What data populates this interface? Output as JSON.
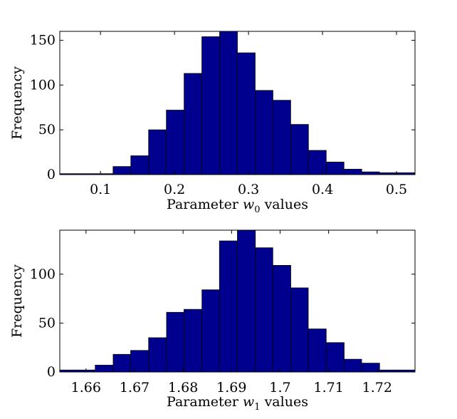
{
  "chart_data": [
    {
      "type": "bar",
      "subtype": "histogram",
      "xlabel_prefix": "Parameter ",
      "xlabel_var": "w",
      "xlabel_sub": "0",
      "xlabel_suffix": " values",
      "ylabel": "Frequency",
      "xlim": [
        0.045,
        0.525
      ],
      "ylim": [
        0,
        160
      ],
      "xticks": [
        0.1,
        0.2,
        0.3,
        0.4,
        0.5
      ],
      "xtick_labels": [
        "0.1",
        "0.2",
        "0.3",
        "0.4",
        "0.5"
      ],
      "yticks": [
        0,
        50,
        100,
        150
      ],
      "ytick_labels": [
        "0",
        "50",
        "100",
        "150"
      ],
      "bin_edges": [
        0.045,
        0.069,
        0.093,
        0.117,
        0.141,
        0.165,
        0.189,
        0.213,
        0.237,
        0.261,
        0.285,
        0.309,
        0.333,
        0.357,
        0.381,
        0.405,
        0.429,
        0.453,
        0.477,
        0.501,
        0.525
      ],
      "values": [
        1,
        1,
        1,
        9,
        21,
        50,
        72,
        113,
        154,
        160,
        136,
        94,
        83,
        56,
        27,
        14,
        6,
        3,
        2,
        2
      ],
      "grid": false,
      "bar_color": "#00008f"
    },
    {
      "type": "bar",
      "subtype": "histogram",
      "xlabel_prefix": "Parameter ",
      "xlabel_var": "w",
      "xlabel_sub": "1",
      "xlabel_suffix": " values",
      "ylabel": "Frequency",
      "xlim": [
        1.6546,
        1.7278
      ],
      "ylim": [
        0,
        145
      ],
      "xticks": [
        1.66,
        1.67,
        1.68,
        1.69,
        1.7,
        1.71,
        1.72
      ],
      "xtick_labels": [
        "1.66",
        "1.67",
        "1.68",
        "1.69",
        "1.7",
        "1.71",
        "1.72"
      ],
      "yticks": [
        0,
        50,
        100
      ],
      "ytick_labels": [
        "0",
        "50",
        "100"
      ],
      "bin_edges": [
        1.6546,
        1.6583,
        1.6619,
        1.6656,
        1.6692,
        1.6729,
        1.6766,
        1.6802,
        1.6839,
        1.6875,
        1.6912,
        1.6949,
        1.6985,
        1.7022,
        1.7058,
        1.7095,
        1.7132,
        1.7168,
        1.7205,
        1.7241,
        1.7278
      ],
      "values": [
        2,
        2,
        7,
        18,
        22,
        35,
        61,
        64,
        84,
        134,
        150,
        127,
        109,
        86,
        44,
        30,
        13,
        9,
        2,
        2
      ],
      "grid": false,
      "bar_color": "#00008f"
    }
  ]
}
